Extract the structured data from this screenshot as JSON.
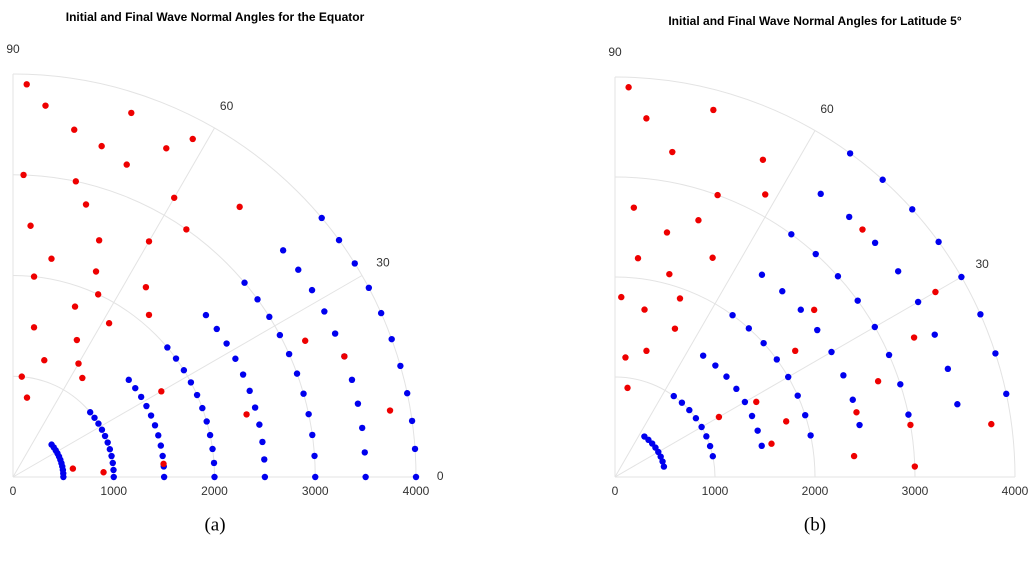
{
  "chart_data": [
    {
      "type": "polar-scatter",
      "title": "Initial and Final Wave Normal Angles for the Equator",
      "caption": "(a)",
      "rlim": [
        0,
        4000
      ],
      "rticks": [
        0,
        1000,
        2000,
        3000,
        4000
      ],
      "thetalim": [
        0,
        90
      ],
      "thetaticks": [
        0,
        30,
        60,
        90
      ],
      "grid": true,
      "series": [
        {
          "color": "#0000ee",
          "theta": [
            0,
            0,
            0,
            0,
            0,
            0,
            0,
            0,
            4,
            4,
            4,
            4,
            4,
            4,
            4,
            4,
            8,
            8,
            8,
            8,
            8,
            8,
            8,
            8,
            12,
            12,
            12,
            12,
            12,
            12,
            12,
            12,
            16,
            16,
            16,
            16,
            16,
            16,
            16,
            16,
            20,
            20,
            20,
            20,
            20,
            20,
            20,
            20,
            24,
            24,
            24,
            24,
            24,
            24,
            24,
            24,
            28,
            28,
            28,
            28,
            28,
            28,
            28,
            28,
            32,
            32,
            32,
            32,
            32,
            32,
            32,
            32,
            36,
            36,
            36,
            36,
            36,
            36,
            36,
            36,
            40,
            40,
            40,
            40,
            40,
            40,
            40,
            40
          ],
          "r": [
            500,
            1000,
            1500,
            2000,
            2500,
            3000,
            3500,
            4000,
            500,
            1000,
            1500,
            2000,
            2500,
            3000,
            3500,
            4000,
            500,
            1000,
            1500,
            2000,
            2500,
            3000,
            3500,
            4000,
            500,
            1000,
            1500,
            2000,
            2500,
            3000,
            3500,
            4000,
            500,
            1000,
            1500,
            2000,
            2500,
            3000,
            3500,
            4000,
            500,
            1000,
            1500,
            2000,
            2500,
            3000,
            3500,
            4000,
            500,
            1000,
            1500,
            2000,
            2500,
            3000,
            3500,
            4000,
            500,
            1000,
            1500,
            2000,
            2500,
            3000,
            3500,
            4000,
            500,
            1000,
            1500,
            2000,
            2500,
            3000,
            3500,
            4000,
            500,
            1000,
            1500,
            2000,
            2500,
            3000,
            3500,
            4000,
            500,
            1000,
            1500,
            2000,
            2500,
            3000,
            3500,
            4000
          ]
        },
        {
          "color": "#ee0000",
          "theta": [
            88,
            85,
            80,
            75,
            70,
            65,
            60,
            55,
            50,
            88,
            86,
            84,
            82,
            85,
            80,
            75,
            70,
            65,
            60,
            55,
            50,
            70,
            65,
            60,
            55,
            75,
            80,
            78,
            72,
            68,
            62,
            58,
            20,
            10,
            25,
            15,
            5,
            30,
            8,
            3
          ],
          "r": [
            3900,
            3700,
            3500,
            3400,
            3300,
            3600,
            3200,
            3000,
            3500,
            3000,
            2500,
            2000,
            1500,
            1000,
            800,
            2800,
            2500,
            2000,
            2700,
            2300,
            2100,
            1800,
            1500,
            1300,
            1200,
            1200,
            2200,
            3000,
            3800,
            2200,
            3800,
            1800,
            3500,
            3800,
            3200,
            2400,
            1500,
            1700,
            600,
            900
          ]
        }
      ]
    },
    {
      "type": "polar-scatter",
      "title": "Initial and Final Wave Normal Angles for Latitude 5°",
      "caption": "(b)",
      "rlim": [
        0,
        4000
      ],
      "rticks": [
        0,
        1000,
        2000,
        3000,
        4000
      ],
      "thetalim": [
        0,
        90
      ],
      "thetaticks": [
        0,
        30,
        60,
        90
      ],
      "grid": true,
      "series": [
        {
          "color": "#0000ee",
          "theta": [
            12,
            12,
            12,
            12,
            12,
            12,
            12,
            12,
            18,
            18,
            18,
            18,
            18,
            18,
            18,
            18,
            24,
            24,
            24,
            24,
            24,
            24,
            24,
            24,
            30,
            30,
            30,
            30,
            30,
            30,
            30,
            30,
            36,
            36,
            36,
            36,
            36,
            36,
            36,
            36,
            42,
            42,
            42,
            42,
            42,
            42,
            42,
            42,
            48,
            48,
            48,
            48,
            48,
            48,
            48,
            48,
            54,
            54,
            54,
            54,
            54,
            54,
            54,
            54
          ],
          "r": [
            500,
            1000,
            1500,
            2000,
            2500,
            3000,
            3500,
            4000,
            500,
            1000,
            1500,
            2000,
            2500,
            3000,
            3500,
            4000,
            500,
            1000,
            1500,
            2000,
            2500,
            3000,
            3500,
            4000,
            500,
            1000,
            1500,
            2000,
            2500,
            3000,
            3500,
            4000,
            500,
            1000,
            1500,
            2000,
            2500,
            3000,
            3500,
            4000,
            500,
            1000,
            1500,
            2000,
            2500,
            3000,
            3500,
            4000,
            500,
            1000,
            1500,
            2000,
            2500,
            3000,
            3500,
            4000,
            500,
            1000,
            1500,
            2000,
            2500,
            3000,
            3500,
            4000
          ]
        },
        {
          "color": "#ee0000",
          "theta": [
            88,
            85,
            80,
            75,
            70,
            65,
            62,
            86,
            84,
            80,
            85,
            82,
            78,
            75,
            70,
            72,
            66,
            68,
            76,
            88,
            30,
            25,
            20,
            15,
            10,
            5,
            8,
            2,
            35,
            28,
            40,
            18,
            12,
            45,
            30
          ],
          "r": [
            3900,
            3600,
            3300,
            3800,
            3000,
            3500,
            3200,
            2700,
            2200,
            1700,
            1200,
            900,
            2500,
            2100,
            1900,
            2700,
            2400,
            1600,
            1300,
            1800,
            3700,
            3300,
            2800,
            2500,
            3000,
            2400,
            3800,
            3000,
            2200,
            1600,
            2600,
            1800,
            1600,
            3500,
            1200
          ]
        }
      ]
    }
  ]
}
